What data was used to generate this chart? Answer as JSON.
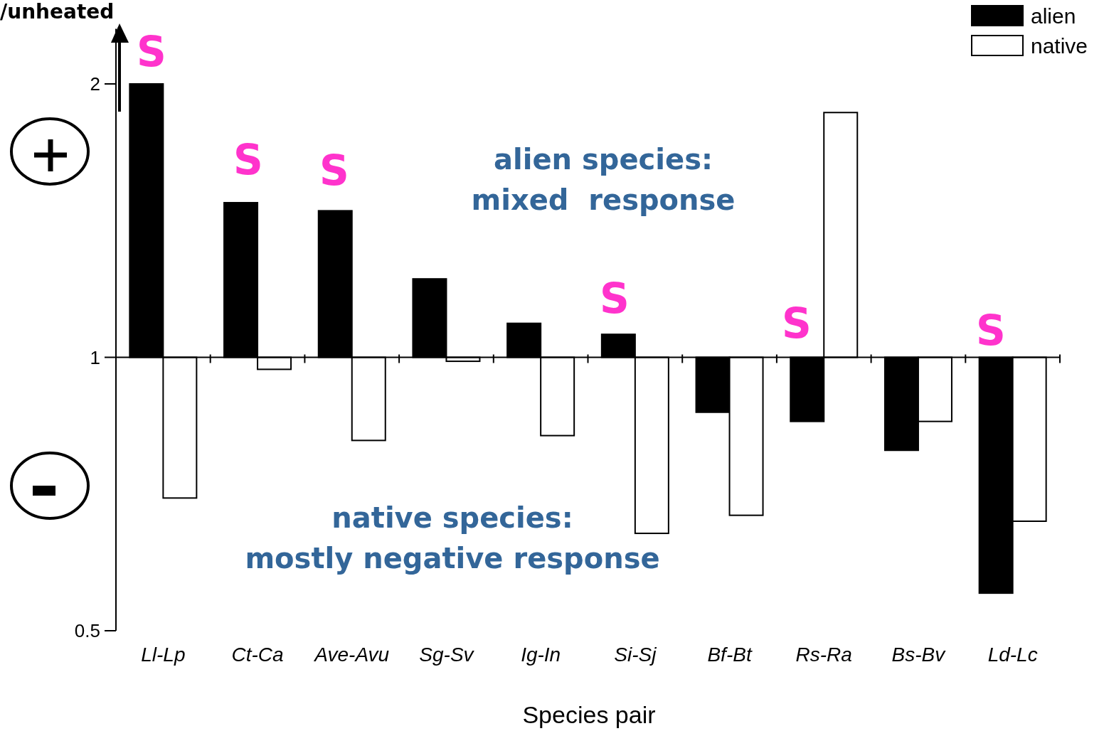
{
  "chart_data": {
    "type": "bar",
    "xlabel": "Species pair",
    "ylabel": "/unheated",
    "log": true,
    "categories": [
      "Ll-Lp",
      "Ct-Ca",
      "Ave-Avu",
      "Sg-Sv",
      "Ig-In",
      "Si-Sj",
      "Bf-Bt",
      "Rs-Ra",
      "Bs-Bv",
      "Ld-Lc"
    ],
    "series": [
      {
        "name": "alien",
        "color": "#000000",
        "base": [
          1,
          1,
          1,
          1,
          1,
          1,
          1,
          1,
          1,
          1
        ],
        "values": [
          1.0,
          0.48,
          0.45,
          0.22,
          0.09,
          0.06,
          -0.13,
          -0.15,
          -0.21,
          -0.45
        ]
      },
      {
        "name": "native",
        "color": "#ffffff",
        "base": [
          1,
          1,
          1,
          1,
          1,
          1,
          1,
          1,
          1,
          1
        ],
        "values": [
          -0.3,
          -0.03,
          -0.19,
          -0.01,
          -0.18,
          -0.36,
          -0.33,
          0.86,
          -0.15,
          -0.34
        ]
      }
    ],
    "ylim": [
      0.5,
      2.3
    ],
    "yticks": [
      0.5,
      1,
      2
    ],
    "legend": "top right",
    "ref_lines": [
      {
        "axis": "y",
        "value": 1,
        "color": "#000000"
      }
    ],
    "annotations": [
      "S",
      "S",
      "S",
      "S",
      "S",
      "S",
      "alien species:\nmixed  response",
      "native species:\nmostly negative response"
    ]
  }
}
